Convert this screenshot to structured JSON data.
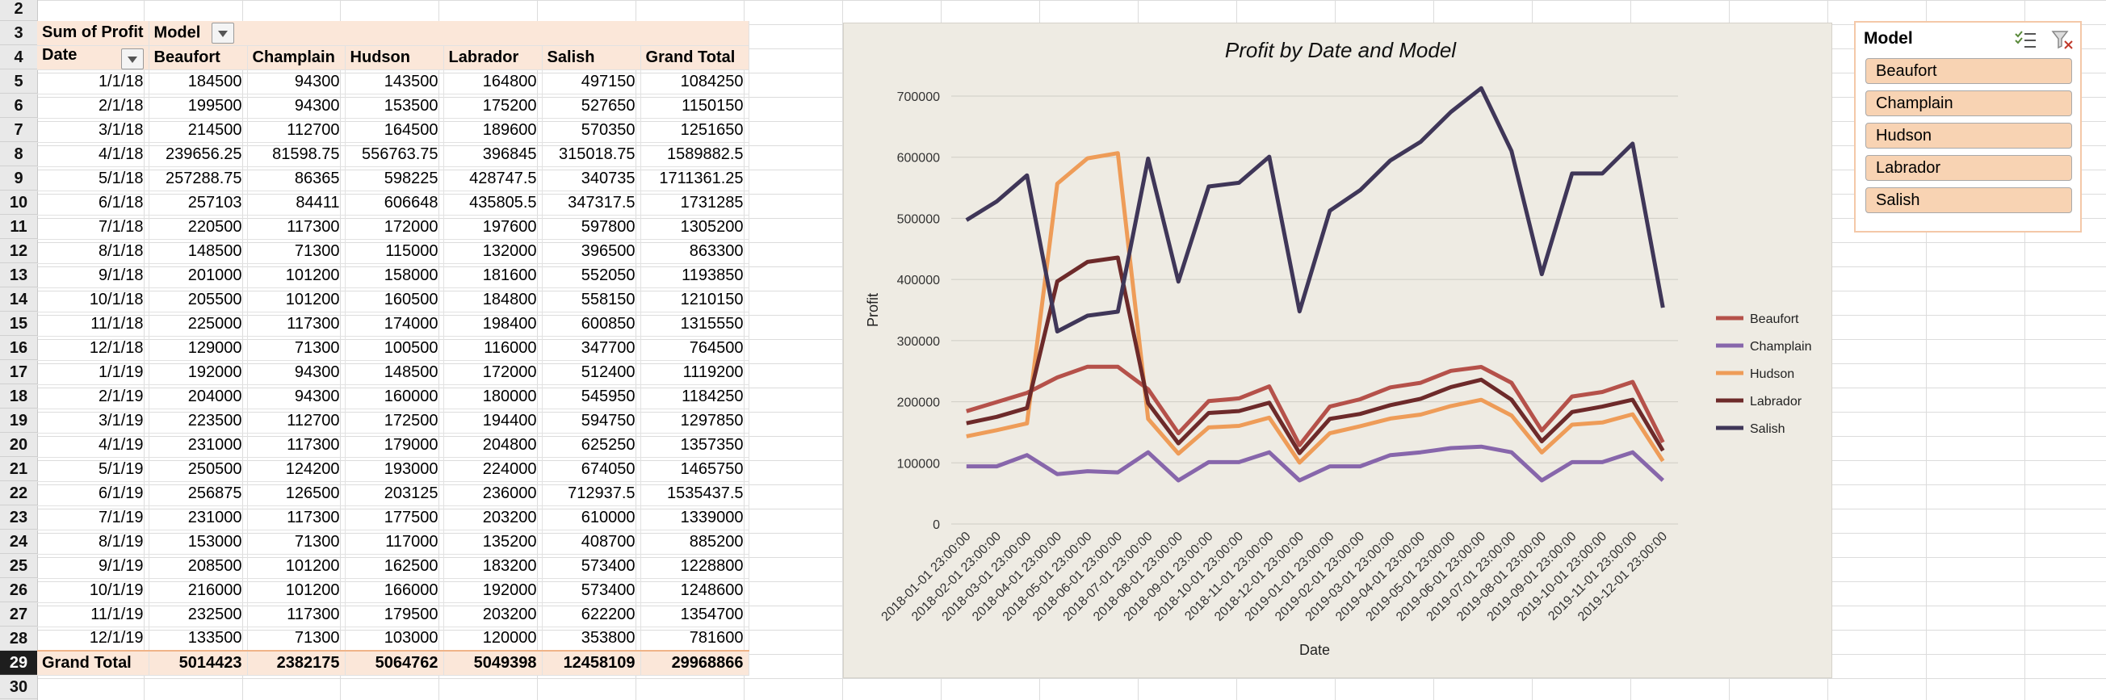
{
  "row_numbers": [
    "2",
    "3",
    "4",
    "5",
    "6",
    "7",
    "8",
    "9",
    "10",
    "11",
    "12",
    "13",
    "14",
    "15",
    "16",
    "17",
    "18",
    "19",
    "20",
    "21",
    "22",
    "23",
    "24",
    "25",
    "26",
    "27",
    "28",
    "29",
    "30"
  ],
  "selected_row": "29",
  "pivot": {
    "corner_label": "Sum of Profit",
    "col_field_label": "Model",
    "row_field_label": "Date",
    "column_headers": [
      "Beaufort",
      "Champlain",
      "Hudson",
      "Labrador",
      "Salish",
      "Grand Total"
    ],
    "rows": [
      {
        "date": "1/1/18",
        "values": [
          "184500",
          "94300",
          "143500",
          "164800",
          "497150",
          "1084250"
        ]
      },
      {
        "date": "2/1/18",
        "values": [
          "199500",
          "94300",
          "153500",
          "175200",
          "527650",
          "1150150"
        ]
      },
      {
        "date": "3/1/18",
        "values": [
          "214500",
          "112700",
          "164500",
          "189600",
          "570350",
          "1251650"
        ]
      },
      {
        "date": "4/1/18",
        "values": [
          "239656.25",
          "81598.75",
          "556763.75",
          "396845",
          "315018.75",
          "1589882.5"
        ]
      },
      {
        "date": "5/1/18",
        "values": [
          "257288.75",
          "86365",
          "598225",
          "428747.5",
          "340735",
          "1711361.25"
        ]
      },
      {
        "date": "6/1/18",
        "values": [
          "257103",
          "84411",
          "606648",
          "435805.5",
          "347317.5",
          "1731285"
        ]
      },
      {
        "date": "7/1/18",
        "values": [
          "220500",
          "117300",
          "172000",
          "197600",
          "597800",
          "1305200"
        ]
      },
      {
        "date": "8/1/18",
        "values": [
          "148500",
          "71300",
          "115000",
          "132000",
          "396500",
          "863300"
        ]
      },
      {
        "date": "9/1/18",
        "values": [
          "201000",
          "101200",
          "158000",
          "181600",
          "552050",
          "1193850"
        ]
      },
      {
        "date": "10/1/18",
        "values": [
          "205500",
          "101200",
          "160500",
          "184800",
          "558150",
          "1210150"
        ]
      },
      {
        "date": "11/1/18",
        "values": [
          "225000",
          "117300",
          "174000",
          "198400",
          "600850",
          "1315550"
        ]
      },
      {
        "date": "12/1/18",
        "values": [
          "129000",
          "71300",
          "100500",
          "116000",
          "347700",
          "764500"
        ]
      },
      {
        "date": "1/1/19",
        "values": [
          "192000",
          "94300",
          "148500",
          "172000",
          "512400",
          "1119200"
        ]
      },
      {
        "date": "2/1/19",
        "values": [
          "204000",
          "94300",
          "160000",
          "180000",
          "545950",
          "1184250"
        ]
      },
      {
        "date": "3/1/19",
        "values": [
          "223500",
          "112700",
          "172500",
          "194400",
          "594750",
          "1297850"
        ]
      },
      {
        "date": "4/1/19",
        "values": [
          "231000",
          "117300",
          "179000",
          "204800",
          "625250",
          "1357350"
        ]
      },
      {
        "date": "5/1/19",
        "values": [
          "250500",
          "124200",
          "193000",
          "224000",
          "674050",
          "1465750"
        ]
      },
      {
        "date": "6/1/19",
        "values": [
          "256875",
          "126500",
          "203125",
          "236000",
          "712937.5",
          "1535437.5"
        ]
      },
      {
        "date": "7/1/19",
        "values": [
          "231000",
          "117300",
          "177500",
          "203200",
          "610000",
          "1339000"
        ]
      },
      {
        "date": "8/1/19",
        "values": [
          "153000",
          "71300",
          "117000",
          "135200",
          "408700",
          "885200"
        ]
      },
      {
        "date": "9/1/19",
        "values": [
          "208500",
          "101200",
          "162500",
          "183200",
          "573400",
          "1228800"
        ]
      },
      {
        "date": "10/1/19",
        "values": [
          "216000",
          "101200",
          "166000",
          "192000",
          "573400",
          "1248600"
        ]
      },
      {
        "date": "11/1/19",
        "values": [
          "232500",
          "117300",
          "179500",
          "203200",
          "622200",
          "1354700"
        ]
      },
      {
        "date": "12/1/19",
        "values": [
          "133500",
          "71300",
          "103000",
          "120000",
          "353800",
          "781600"
        ]
      }
    ],
    "grand_total_label": "Grand Total",
    "grand_totals": [
      "5014423",
      "2382175",
      "5064762",
      "5049398",
      "12458109",
      "29968866"
    ]
  },
  "chart_data": {
    "type": "line",
    "title": "Profit by Date and Model",
    "xlabel": "Date",
    "ylabel": "Profit",
    "ylim": [
      0,
      700000
    ],
    "yticks": [
      0,
      100000,
      200000,
      300000,
      400000,
      500000,
      600000,
      700000
    ],
    "grid": true,
    "legend_position": "right",
    "x": [
      "2018-01-01 23:00:00",
      "2018-02-01 23:00:00",
      "2018-03-01 23:00:00",
      "2018-04-01 23:00:00",
      "2018-05-01 23:00:00",
      "2018-06-01 23:00:00",
      "2018-07-01 23:00:00",
      "2018-08-01 23:00:00",
      "2018-09-01 23:00:00",
      "2018-10-01 23:00:00",
      "2018-11-01 23:00:00",
      "2018-12-01 23:00:00",
      "2019-01-01 23:00:00",
      "2019-02-01 23:00:00",
      "2019-03-01 23:00:00",
      "2019-04-01 23:00:00",
      "2019-05-01 23:00:00",
      "2019-06-01 23:00:00",
      "2019-07-01 23:00:00",
      "2019-08-01 23:00:00",
      "2019-09-01 23:00:00",
      "2019-10-01 23:00:00",
      "2019-11-01 23:00:00",
      "2019-12-01 23:00:00"
    ],
    "series": [
      {
        "name": "Beaufort",
        "color": "#b5514a",
        "values": [
          184500,
          199500,
          214500,
          239656.25,
          257288.75,
          257103,
          220500,
          148500,
          201000,
          205500,
          225000,
          129000,
          192000,
          204000,
          223500,
          231000,
          250500,
          256875,
          231000,
          153000,
          208500,
          216000,
          232500,
          133500
        ]
      },
      {
        "name": "Champlain",
        "color": "#8766ab",
        "values": [
          94300,
          94300,
          112700,
          81598.75,
          86365,
          84411,
          117300,
          71300,
          101200,
          101200,
          117300,
          71300,
          94300,
          94300,
          112700,
          117300,
          124200,
          126500,
          117300,
          71300,
          101200,
          101200,
          117300,
          71300
        ]
      },
      {
        "name": "Hudson",
        "color": "#ee9c58",
        "values": [
          143500,
          153500,
          164500,
          556763.75,
          598225,
          606648,
          172000,
          115000,
          158000,
          160500,
          174000,
          100500,
          148500,
          160000,
          172500,
          179000,
          193000,
          203125,
          177500,
          117000,
          162500,
          166000,
          179500,
          103000
        ]
      },
      {
        "name": "Labrador",
        "color": "#6d2a2a",
        "values": [
          164800,
          175200,
          189600,
          396845,
          428747.5,
          435805.5,
          197600,
          132000,
          181600,
          184800,
          198400,
          116000,
          172000,
          180000,
          194400,
          204800,
          224000,
          236000,
          203200,
          135200,
          183200,
          192000,
          203200,
          120000
        ]
      },
      {
        "name": "Salish",
        "color": "#3f3658",
        "values": [
          497150,
          527650,
          570350,
          315018.75,
          340735,
          347317.5,
          597800,
          396500,
          552050,
          558150,
          600850,
          347700,
          512400,
          545950,
          594750,
          625250,
          674050,
          712937.5,
          610000,
          408700,
          573400,
          573400,
          622200,
          353800
        ]
      }
    ]
  },
  "slicer": {
    "title": "Model",
    "icons": [
      "multi-select-icon",
      "clear-filter-icon"
    ],
    "items": [
      "Beaufort",
      "Champlain",
      "Hudson",
      "Labrador",
      "Salish"
    ]
  }
}
